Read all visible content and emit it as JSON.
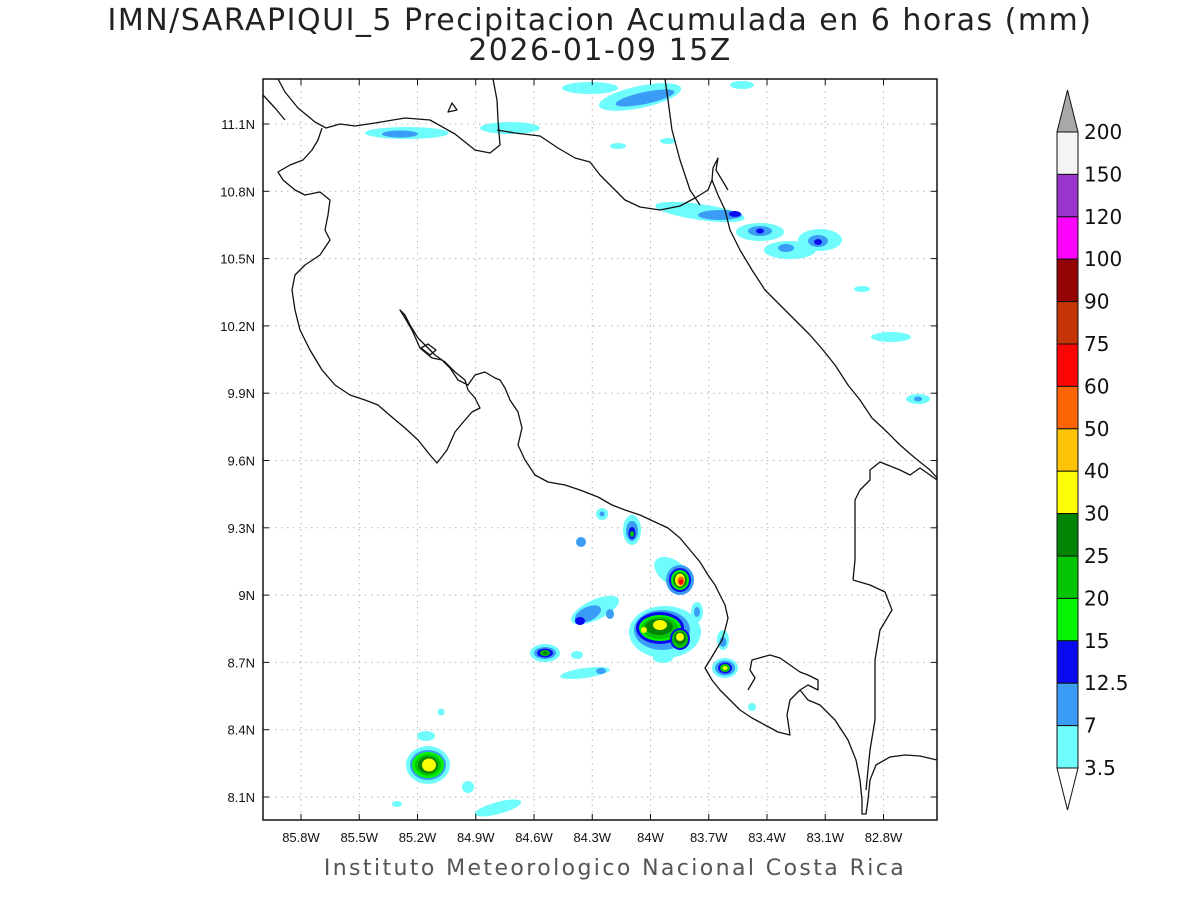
{
  "title_line1": "IMN/SARAPIQUI_5 Precipitacion Acumulada en 6 horas (mm)",
  "title_line2": "2026-01-09 15Z",
  "footer": "Instituto Meteorologico Nacional Costa Rica",
  "x_ticks": [
    "85.8W",
    "85.5W",
    "85.2W",
    "84.9W",
    "84.6W",
    "84.3W",
    "84W",
    "83.7W",
    "83.4W",
    "83.1W",
    "82.8W"
  ],
  "y_ticks": [
    "11.1N",
    "10.8N",
    "10.5N",
    "10.2N",
    "9.9N",
    "9.6N",
    "9.3N",
    "9N",
    "8.7N",
    "8.4N",
    "8.1N"
  ],
  "colorbar": {
    "levels": [
      "3.5",
      "7",
      "12.5",
      "15",
      "20",
      "25",
      "30",
      "40",
      "50",
      "60",
      "75",
      "90",
      "100",
      "120",
      "150",
      "200"
    ],
    "colors": [
      "#6efcfc",
      "#3a9cf4",
      "#0a0af0",
      "#04f404",
      "#04c404",
      "#048404",
      "#fcfc04",
      "#fcc404",
      "#fc6404",
      "#fc0404",
      "#c43404",
      "#940404",
      "#fc04fc",
      "#9a34cc",
      "#f4f4f4",
      "#a8a8a8"
    ],
    "under_color": "#ffffff"
  },
  "precip_cells": [
    {
      "lon": -85.16,
      "lat": 8.25,
      "peak": "40"
    },
    {
      "lon": -83.83,
      "lat": 9.06,
      "peak": "50"
    },
    {
      "lon": -83.93,
      "lat": 8.86,
      "peak": "40"
    },
    {
      "lon": -83.82,
      "lat": 8.8,
      "peak": "40"
    },
    {
      "lon": -84.54,
      "lat": 8.74,
      "peak": "25"
    },
    {
      "lon": -83.59,
      "lat": 8.67,
      "peak": "30"
    },
    {
      "lon": -84.09,
      "lat": 9.27,
      "peak": "20"
    },
    {
      "lon": -84.37,
      "lat": 8.87,
      "peak": "12.5"
    },
    {
      "lon": -83.58,
      "lat": 10.71,
      "peak": "12.5"
    },
    {
      "lon": -83.09,
      "lat": 10.57,
      "peak": "12.5"
    },
    {
      "lon": -83.38,
      "lat": 10.63,
      "peak": "12.5"
    },
    {
      "lon": -85.41,
      "lat": 11.07,
      "peak": "7"
    },
    {
      "lon": -83.97,
      "lat": 11.22,
      "peak": "7"
    }
  ]
}
